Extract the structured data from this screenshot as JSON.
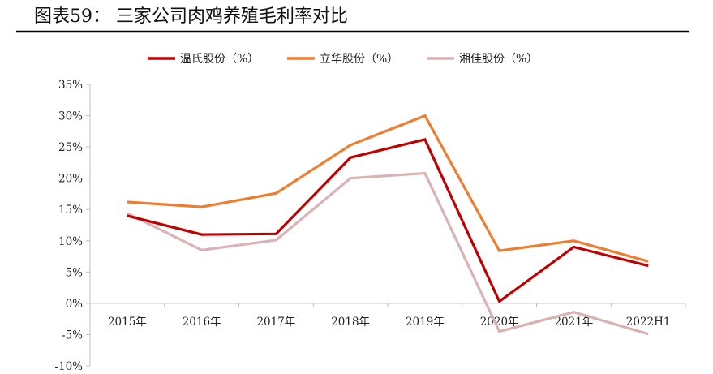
{
  "title": "图表59：  三家公司肉鸡养殖毛利率对比",
  "chart_data": {
    "type": "line",
    "categories": [
      "2015年",
      "2016年",
      "2017年",
      "2018年",
      "2019年",
      "2020年",
      "2021年",
      "2022H1"
    ],
    "ylim": [
      -10,
      35
    ],
    "yticks": [
      35,
      30,
      25,
      20,
      15,
      10,
      5,
      0,
      -5,
      -10
    ],
    "ytick_labels": [
      "35%",
      "30%",
      "25%",
      "20%",
      "15%",
      "10%",
      "5%",
      "0%",
      "-5%",
      "-10%"
    ],
    "grid": false,
    "legend_position": "top-center",
    "series": [
      {
        "name": "温氏股份（%）",
        "color": "#c00000",
        "values": [
          14.0,
          11.0,
          11.1,
          23.3,
          26.2,
          0.3,
          9.0,
          6.0
        ]
      },
      {
        "name": "立华股份（%）",
        "color": "#ed7d31",
        "values": [
          16.2,
          15.4,
          17.6,
          25.3,
          30.0,
          8.4,
          10.0,
          6.7
        ]
      },
      {
        "name": "湘佳股份（%）",
        "color": "#d9b3b3",
        "values": [
          14.4,
          8.5,
          10.1,
          20.0,
          20.8,
          -4.5,
          -1.4,
          -4.9
        ]
      }
    ]
  }
}
